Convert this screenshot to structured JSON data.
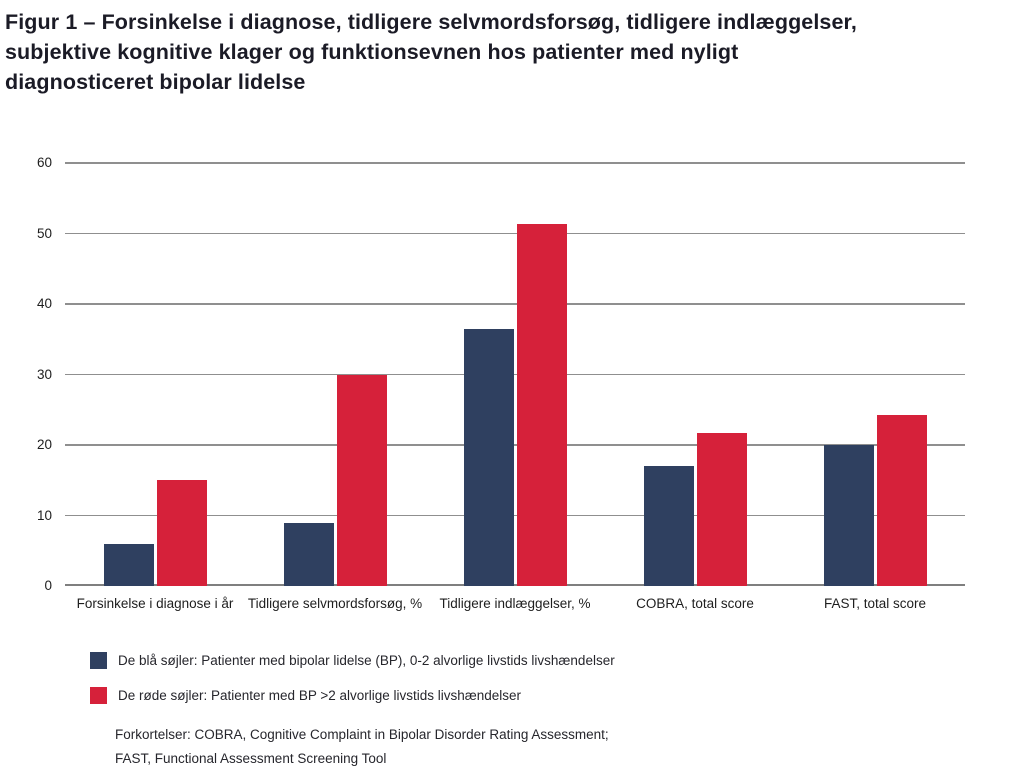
{
  "header": {
    "title_lines": [
      "Figur 1 – Forsinkelse i diagnose, tidligere selvmordsforsøg, tidligere indlæggelser,",
      "subjektive kognitive klager og funktionsevnen hos patienter med nyligt",
      "diagnosticeret bipolar lidelse"
    ],
    "title_full": "Figur 1 – Forsinkelse i diagnose, tidligere selvmordsforsøg, tidligere indlæggelser, subjektive kognitive klager og funktionsevnen hos patienter med nyligt diagnosticeret bipolar lidelse"
  },
  "chart_data": {
    "type": "bar",
    "categories": [
      "Forsinkelse i diagnose i år",
      "Tidligere selvmordsforsøg, %",
      "Tidligere indlæggelser, %",
      "COBRA, total score",
      "FAST, total score"
    ],
    "series": [
      {
        "key": "blue",
        "name": "De blå søjler: Patienter med bipolar lidelse (BP), 0-2 alvorlige livstids livshændelser",
        "color": "#2F4060",
        "values": [
          6,
          9,
          36.5,
          17,
          20
        ]
      },
      {
        "key": "red",
        "name": "De røde søjler: Patienter med BP >2 alvorlige livstids livshændelser",
        "color": "#D6213A",
        "values": [
          15,
          30,
          51.3,
          21.7,
          24.2
        ]
      }
    ],
    "ylim": [
      0,
      60
    ],
    "yticks": [
      0,
      10,
      20,
      30,
      40,
      50,
      60
    ],
    "xlabel": "",
    "ylabel": "",
    "grid": "horizontal",
    "legend_position": "below-left"
  },
  "footnote": {
    "lines": [
      "Forkortelser: COBRA, Cognitive Complaint in Bipolar Disorder Rating Assessment;",
      "FAST, Functional Assessment Screening Tool"
    ]
  },
  "colors": {
    "bar_blue": "#2F4060",
    "bar_red": "#D6213A",
    "gridline": "#8F8F8F",
    "title_text": "#1B1B26",
    "body_text": "#26262C"
  }
}
